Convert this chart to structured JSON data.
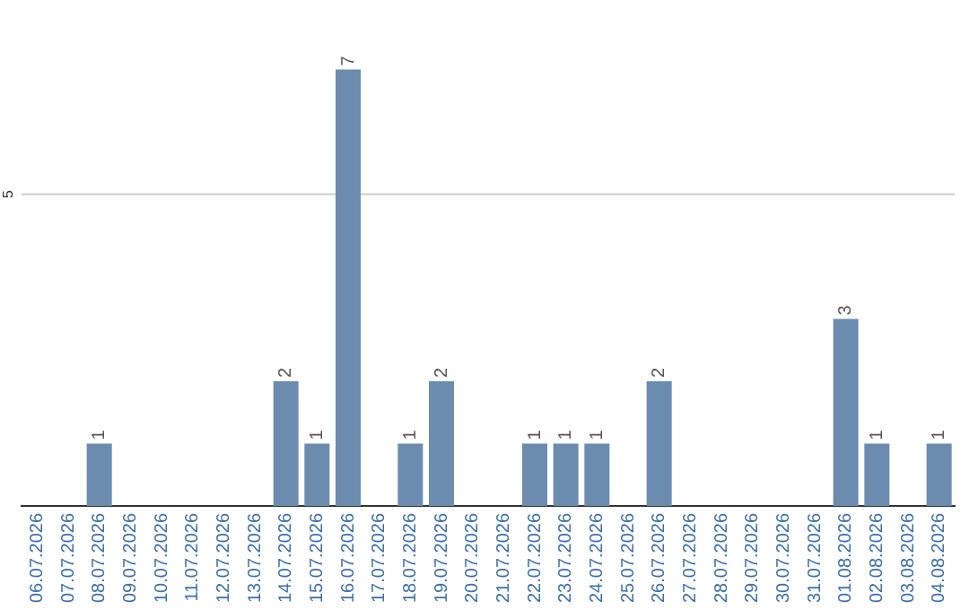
{
  "chart_data": {
    "type": "bar",
    "categories": [
      "06.07.2026",
      "07.07.2026",
      "08.07.2026",
      "09.07.2026",
      "10.07.2026",
      "11.07.2026",
      "12.07.2026",
      "13.07.2026",
      "14.07.2026",
      "15.07.2026",
      "16.07.2026",
      "17.07.2026",
      "18.07.2026",
      "19.07.2026",
      "20.07.2026",
      "21.07.2026",
      "22.07.2026",
      "23.07.2026",
      "24.07.2026",
      "25.07.2026",
      "26.07.2026",
      "27.07.2026",
      "28.07.2026",
      "29.07.2026",
      "30.07.2026",
      "31.07.2026",
      "01.08.2026",
      "02.08.2026",
      "03.08.2026",
      "04.08.2026"
    ],
    "values": [
      0,
      0,
      1,
      0,
      0,
      0,
      0,
      0,
      2,
      1,
      7,
      0,
      1,
      2,
      0,
      0,
      1,
      1,
      1,
      0,
      2,
      0,
      0,
      0,
      0,
      0,
      3,
      1,
      0,
      1
    ],
    "value_labels": [
      null,
      null,
      "1",
      null,
      null,
      null,
      null,
      null,
      "2",
      "1",
      "7",
      null,
      "1",
      "2",
      null,
      null,
      "1",
      "1",
      "1",
      null,
      "2",
      null,
      null,
      null,
      null,
      null,
      "3",
      "1",
      null,
      "1"
    ],
    "color": "#6b8cae",
    "ref_lines": [
      {
        "axis": "y",
        "value": 5,
        "label": "5",
        "color": "#cccccc"
      }
    ],
    "legend": false
  }
}
